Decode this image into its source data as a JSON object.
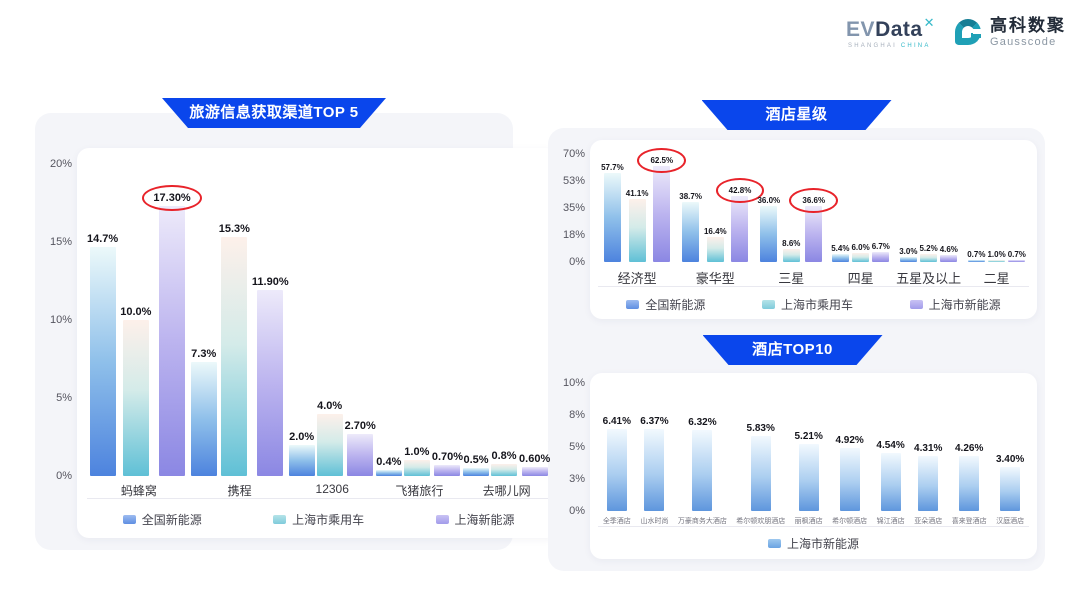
{
  "brand": {
    "evdata": {
      "ev": "EV",
      "data": "Data",
      "x": "✕",
      "subtext_left": "SHANGHAI",
      "subtext_right": "CHINA"
    },
    "gausscode": {
      "cn": "高科数聚",
      "en": "Gausscode"
    }
  },
  "colors": {
    "banner_blue": "#0a46ec",
    "annotation_red": "#e8232a",
    "card_gray": "#f4f5f9",
    "series_blue_bottom": "#4d83de",
    "series_teal_bottom": "#5fc0d6",
    "series_purple_bottom": "#8b87e3",
    "hotel_bar_bottom": "#5e96dd",
    "logo_teal": "#36b9c9"
  },
  "chart_data": [
    {
      "type": "bar",
      "title": "旅游信息获取渠道TOP 5",
      "y_ticks": [
        "20%",
        "15%",
        "10%",
        "5%",
        "0%"
      ],
      "ylim": [
        0,
        20
      ],
      "grid": false,
      "legend_position": "bottom",
      "categories": [
        "蚂蜂窝",
        "携程",
        "12306",
        "飞猪旅行",
        "去哪儿网"
      ],
      "series": [
        {
          "name": "全国新能源",
          "values": [
            14.7,
            7.3,
            2.0,
            0.4,
            0.5
          ],
          "labels": [
            "14.7%",
            "7.3%",
            "2.0%",
            "0.4%",
            "0.5%"
          ],
          "circled": []
        },
        {
          "name": "上海市乘用车",
          "values": [
            10.0,
            15.3,
            4.0,
            1.0,
            0.8
          ],
          "labels": [
            "10.0%",
            "15.3%",
            "4.0%",
            "1.0%",
            "0.8%"
          ],
          "circled": []
        },
        {
          "name": "上海新能源",
          "values": [
            17.3,
            11.9,
            2.7,
            0.7,
            0.6
          ],
          "labels": [
            "17.30%",
            "11.90%",
            "2.70%",
            "0.70%",
            "0.60%"
          ],
          "circled": [
            0
          ]
        }
      ]
    },
    {
      "type": "bar",
      "title": "酒店星级",
      "y_ticks": [
        "70%",
        "53%",
        "35%",
        "18%",
        "0%"
      ],
      "ylim": [
        0,
        70
      ],
      "grid": false,
      "legend_position": "bottom",
      "categories": [
        "经济型",
        "豪华型",
        "三星",
        "四星",
        "五星及以上",
        "二星"
      ],
      "series": [
        {
          "name": "全国新能源",
          "values": [
            57.7,
            38.7,
            36.0,
            5.4,
            3.0,
            0.7
          ],
          "labels": [
            "57.7%",
            "38.7%",
            "36.0%",
            "5.4%",
            "3.0%",
            "0.7%"
          ],
          "circled": []
        },
        {
          "name": "上海市乘用车",
          "values": [
            41.1,
            16.4,
            8.6,
            6.0,
            5.2,
            1.0
          ],
          "labels": [
            "41.1%",
            "16.4%",
            "8.6%",
            "6.0%",
            "5.2%",
            "1.0%"
          ],
          "circled": []
        },
        {
          "name": "上海市新能源",
          "values": [
            62.5,
            42.8,
            36.6,
            6.7,
            4.6,
            0.7
          ],
          "labels": [
            "62.5%",
            "42.8%",
            "36.6%",
            "6.7%",
            "4.6%",
            "0.7%"
          ],
          "circled": [
            0,
            1,
            2
          ]
        }
      ]
    },
    {
      "type": "bar",
      "title": "酒店TOP10",
      "y_ticks": [
        "10%",
        "8%",
        "5%",
        "3%",
        "0%"
      ],
      "ylim": [
        0,
        10
      ],
      "grid": false,
      "legend_position": "bottom",
      "categories": [
        "全季酒店",
        "山水时尚",
        "万豪商务大酒店",
        "希尔顿欢朋酒店",
        "丽枫酒店",
        "希尔顿酒店",
        "锦江酒店",
        "亚朵酒店",
        "喜来登酒店",
        "汉庭酒店"
      ],
      "series": [
        {
          "name": "上海市新能源",
          "values": [
            6.41,
            6.37,
            6.32,
            5.83,
            5.21,
            4.92,
            4.54,
            4.31,
            4.26,
            3.4
          ],
          "labels": [
            "6.41%",
            "6.37%",
            "6.32%",
            "5.83%",
            "5.21%",
            "4.92%",
            "4.54%",
            "4.31%",
            "4.26%",
            "3.40%"
          ],
          "circled": []
        }
      ]
    }
  ]
}
